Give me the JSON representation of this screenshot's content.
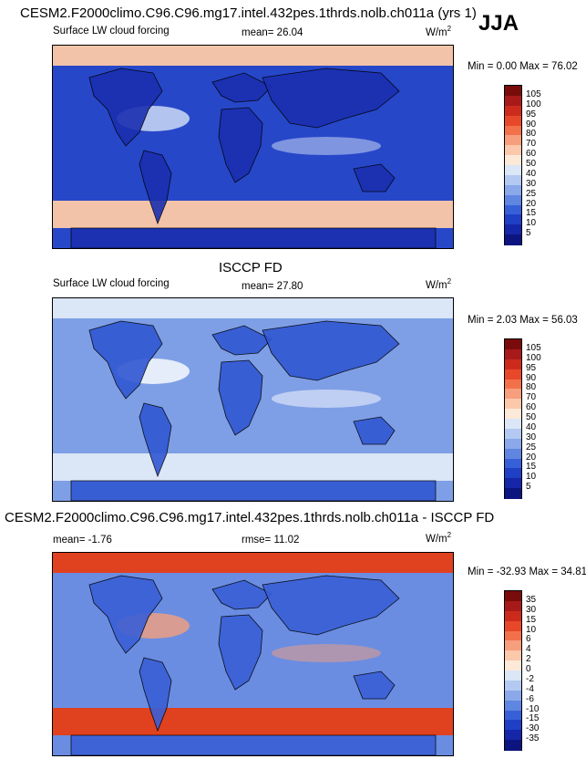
{
  "header": {
    "title": "CESM2.F2000climo.C96.C96.mg17.intel.432pes.1thrds.nolb.ch011a (yrs 1)",
    "season": "JJA"
  },
  "panels": [
    {
      "id": "model",
      "heading": "",
      "variable": "Surface LW cloud forcing",
      "stat_text": "mean=  26.04",
      "unit_base": "W/m",
      "unit_exp": "2",
      "minmax": "Min =   0.00 Max =  76.02",
      "colorbar_labels": [
        "105",
        "100",
        "95",
        "90",
        "80",
        "70",
        "60",
        "50",
        "40",
        "30",
        "25",
        "20",
        "15",
        "10",
        "5"
      ],
      "colorbar_colors": [
        "#7a0b0b",
        "#a81a1a",
        "#cc2b1c",
        "#e8482a",
        "#f2714a",
        "#f79e7d",
        "#fbc8ab",
        "#fde9d8",
        "#dbe6f7",
        "#b3c9f1",
        "#8aa8ea",
        "#5f86e0",
        "#3760d8",
        "#1f3fc4",
        "#1526a8",
        "#0c1480"
      ],
      "map_palette": {
        "ocean": "#2747c9",
        "band": "#f2c3a8",
        "land": "#1a2fb0",
        "highlight": "#d7e4f7"
      }
    },
    {
      "id": "obs",
      "heading": "ISCCP FD",
      "variable": "Surface LW cloud forcing",
      "stat_text": "mean=  27.80",
      "unit_base": "W/m",
      "unit_exp": "2",
      "minmax": "Min =   2.03 Max =  56.03",
      "colorbar_labels": [
        "105",
        "100",
        "95",
        "90",
        "80",
        "70",
        "60",
        "50",
        "40",
        "30",
        "25",
        "20",
        "15",
        "10",
        "5"
      ],
      "colorbar_colors": [
        "#7a0b0b",
        "#a81a1a",
        "#cc2b1c",
        "#e8482a",
        "#f2714a",
        "#f79e7d",
        "#fbc8ab",
        "#fde9d8",
        "#dbe6f7",
        "#b3c9f1",
        "#8aa8ea",
        "#5f86e0",
        "#3760d8",
        "#1f3fc4",
        "#1526a8",
        "#0c1480"
      ],
      "map_palette": {
        "ocean": "#7e9fe6",
        "band": "#dbe6f7",
        "land": "#3157d3",
        "highlight": "#ffffff"
      }
    },
    {
      "id": "diff",
      "heading": "CESM2.F2000climo.C96.C96.mg17.intel.432pes.1thrds.nolb.ch011a - ISCCP FD",
      "variable": "",
      "stat_text": "mean=  -1.76",
      "rmse_text": "rmse=  11.02",
      "unit_base": "W/m",
      "unit_exp": "2",
      "minmax": "Min = -32.93 Max =  34.81",
      "colorbar_labels": [
        "35",
        "30",
        "15",
        "10",
        "6",
        "4",
        "2",
        "0",
        "-2",
        "-4",
        "-6",
        "-10",
        "-15",
        "-30",
        "-35"
      ],
      "colorbar_colors": [
        "#7a0b0b",
        "#a81a1a",
        "#cc2b1c",
        "#e8482a",
        "#f2714a",
        "#f79e7d",
        "#fbc8ab",
        "#fde9d8",
        "#dbe6f7",
        "#b3c9f1",
        "#8aa8ea",
        "#5f86e0",
        "#3760d8",
        "#1f3fc4",
        "#1526a8",
        "#0c1480"
      ],
      "map_palette": {
        "ocean": "#6a8de2",
        "band": "#e0411f",
        "land": "#3a5fd6",
        "highlight": "#f4a07e"
      }
    }
  ]
}
